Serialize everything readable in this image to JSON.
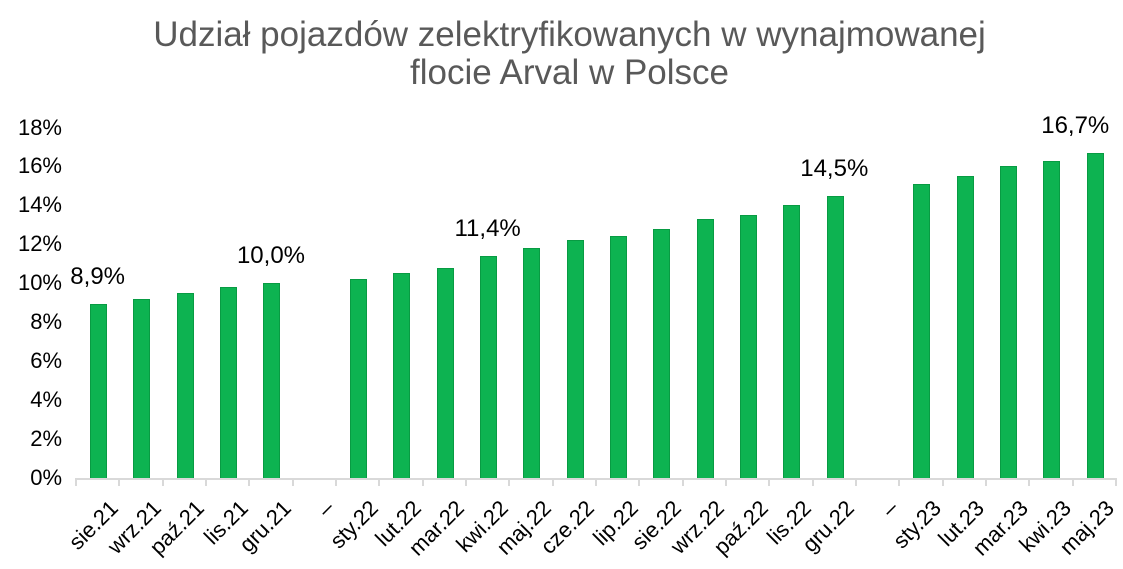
{
  "title_line1": "Udział pojazdów zelektryfikowanych w wynajmowanej",
  "title_line2": "flocie Arval w Polsce",
  "chart_data": {
    "type": "bar",
    "title": "Udział pojazdów zelektryfikowanych w wynajmowanej flocie Arval w Polsce",
    "xlabel": "",
    "ylabel": "",
    "ylim": [
      0,
      18
    ],
    "grid": false,
    "legend": false,
    "categories": [
      "sie.21",
      "wrz.21",
      "paź.21",
      "lis.21",
      "gru.21",
      "–",
      "sty.22",
      "lut.22",
      "mar.22",
      "kwi.22",
      "maj.22",
      "cze.22",
      "lip.22",
      "sie.22",
      "wrz.22",
      "paź.22",
      "lis.22",
      "gru.22",
      "–",
      "sty.23",
      "lut.23",
      "mar.23",
      "kwi.23",
      "maj.23"
    ],
    "values": [
      8.9,
      9.2,
      9.5,
      9.8,
      10.0,
      null,
      10.2,
      10.5,
      10.8,
      11.4,
      11.8,
      12.2,
      12.4,
      12.8,
      13.3,
      13.5,
      14.0,
      14.5,
      null,
      15.1,
      15.5,
      16.0,
      16.3,
      16.7
    ],
    "y_ticks": [
      "0%",
      "2%",
      "4%",
      "6%",
      "8%",
      "10%",
      "12%",
      "14%",
      "16%",
      "18%"
    ],
    "data_labels": [
      {
        "index": 0,
        "text": "8,9%"
      },
      {
        "index": 4,
        "text": "10,0%"
      },
      {
        "index": 9,
        "text": "11,4%"
      },
      {
        "index": 17,
        "text": "14,5%"
      },
      {
        "index": 23,
        "text": "16,7%",
        "dx": -19
      }
    ],
    "colors": {
      "bar_fill": "#0db351",
      "bar_border": "#089b43",
      "axis_line": "#d9d9d9",
      "title_text": "#595959",
      "axis_text": "#000000",
      "label_text": "#000000",
      "background": "#ffffff"
    }
  }
}
